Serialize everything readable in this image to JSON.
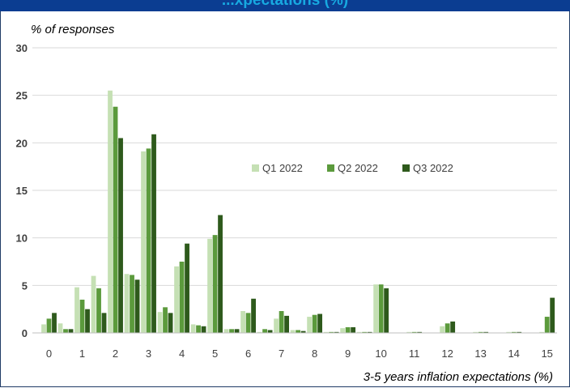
{
  "header": {
    "title": "...xpectations (%)"
  },
  "chart_data": {
    "type": "bar",
    "ylabel": "% of responses",
    "xlabel": "3-5 years inflation expectations (%)",
    "ylim": [
      0,
      30
    ],
    "yticks": [
      "0",
      "5",
      "10",
      "15",
      "20",
      "25",
      "30"
    ],
    "xlim": [
      -0.5,
      15.3
    ],
    "xticks": [
      "0",
      "1",
      "2",
      "3",
      "4",
      "5",
      "6",
      "7",
      "8",
      "9",
      "10",
      "11",
      "12",
      "13",
      "14",
      "15"
    ],
    "grid": true,
    "legend_position": "center-right",
    "colors": [
      "#c5e0b4",
      "#5b9a3c",
      "#2e5a1c"
    ],
    "x": [
      0,
      0.5,
      1,
      1.5,
      2,
      2.5,
      3,
      3.5,
      4,
      4.5,
      5,
      5.5,
      6,
      6.5,
      7,
      7.5,
      8,
      8.5,
      9,
      9.5,
      10,
      10.5,
      11,
      11.5,
      12,
      12.5,
      13,
      13.5,
      14,
      14.5,
      15
    ],
    "series": [
      {
        "name": "Q1 2022",
        "values": [
          0.9,
          1.0,
          4.8,
          6.0,
          25.5,
          6.2,
          19.1,
          2.2,
          7.0,
          0.9,
          9.9,
          0.4,
          2.3,
          0.1,
          1.5,
          0.3,
          1.7,
          0.1,
          0.5,
          0.1,
          5.1,
          0,
          0.1,
          0,
          0.7,
          0,
          0.1,
          0,
          0.1,
          0,
          0.1
        ]
      },
      {
        "name": "Q2 2022",
        "values": [
          1.5,
          0.4,
          3.5,
          4.7,
          23.8,
          6.1,
          19.4,
          2.7,
          7.5,
          0.8,
          10.3,
          0.4,
          2.1,
          0.4,
          2.3,
          0.3,
          1.9,
          0.1,
          0.6,
          0.1,
          5.1,
          0,
          0.1,
          0,
          1.0,
          0,
          0.1,
          0,
          0.1,
          0,
          1.7
        ]
      },
      {
        "name": "Q3 2022",
        "values": [
          2.1,
          0.4,
          2.5,
          2.1,
          20.5,
          5.6,
          20.9,
          2.1,
          9.4,
          0.7,
          12.4,
          0.4,
          3.6,
          0.3,
          1.8,
          0.2,
          2.0,
          0.1,
          0.6,
          0.1,
          4.7,
          0,
          0.1,
          0,
          1.2,
          0,
          0.1,
          0,
          0.1,
          0,
          3.7
        ]
      }
    ]
  }
}
